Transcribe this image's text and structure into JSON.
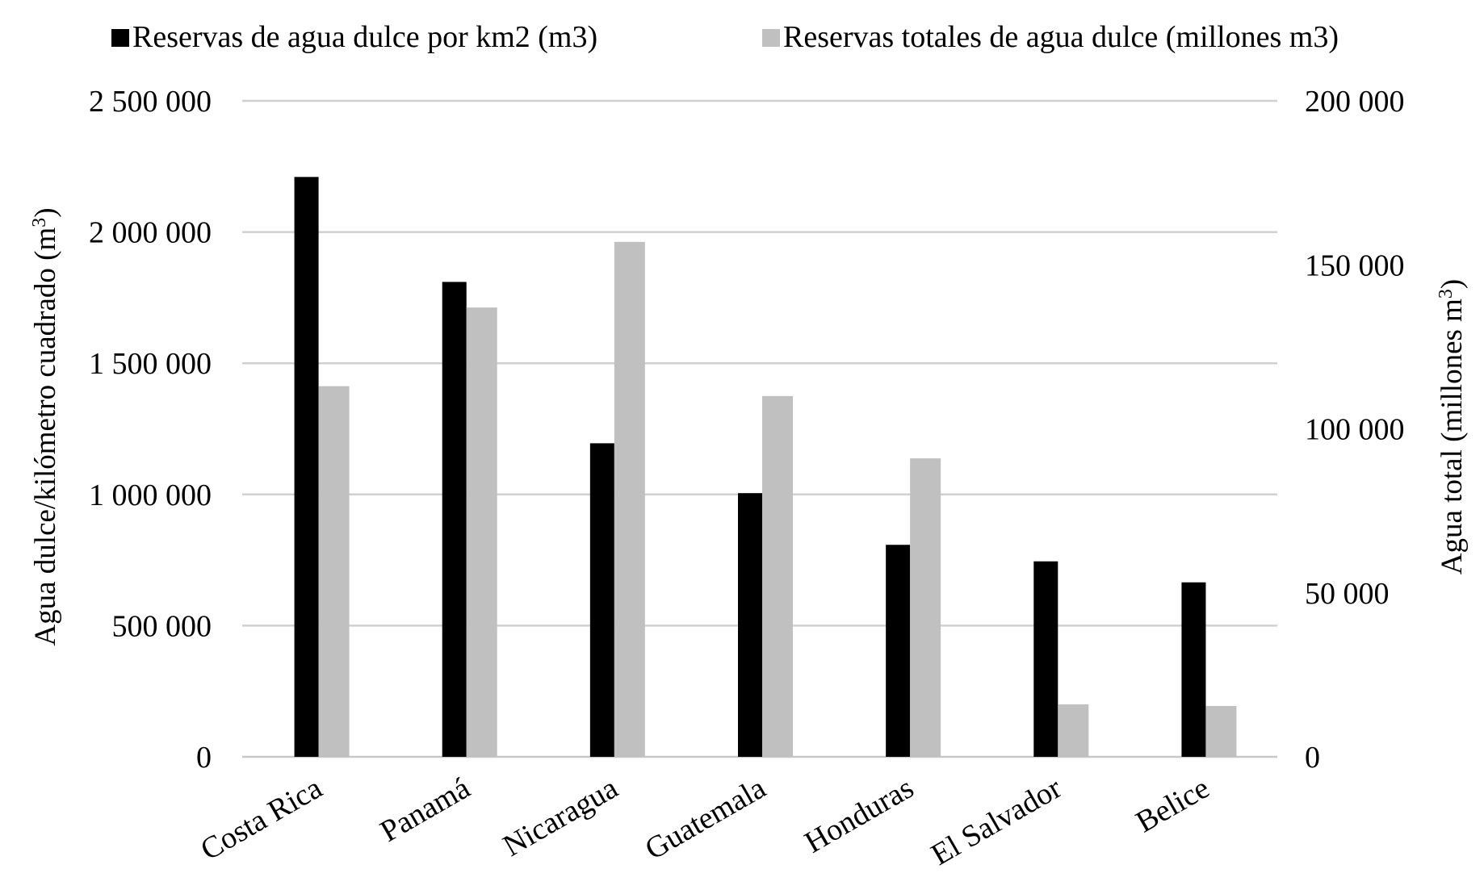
{
  "chart_data": {
    "type": "bar",
    "categories": [
      "Costa Rica",
      "Panamá",
      "Nicaragua",
      "Guatemala",
      "Honduras",
      "El Salvador",
      "Belice"
    ],
    "series": [
      {
        "name": "Reservas de agua dulce por km2 (m3)",
        "axis": "left",
        "color": "#000000",
        "values": [
          2210000,
          1810000,
          1195000,
          1005000,
          808000,
          745000,
          665000
        ]
      },
      {
        "name": "Reservas totales de agua dulce (millones m3)",
        "axis": "right",
        "color": "#c0c0c0",
        "values": [
          113000,
          137000,
          157000,
          110000,
          91000,
          16000,
          15500
        ]
      }
    ],
    "ylabel": "Agua dulce/kilómetro cuadrado (m",
    "ylabel_sup": "3",
    "ylabel_close": ")",
    "y2label": "Agua total (millones m",
    "y2label_sup": "3",
    "y2label_close": ")",
    "ylim": [
      0,
      2500000
    ],
    "y2lim": [
      0,
      200000
    ],
    "yticks": [
      0,
      500000,
      1000000,
      1500000,
      2000000,
      2500000
    ],
    "yticklabels": [
      "0",
      "500 000",
      "1 000 000",
      "1 500 000",
      "2 000 000",
      "2 500 000"
    ],
    "y2ticks": [
      0,
      50000,
      100000,
      150000,
      200000
    ],
    "y2ticklabels": [
      "0",
      "50 000",
      "100 000",
      "150 000",
      "200 000"
    ],
    "grid": true,
    "legend_position": "top"
  }
}
